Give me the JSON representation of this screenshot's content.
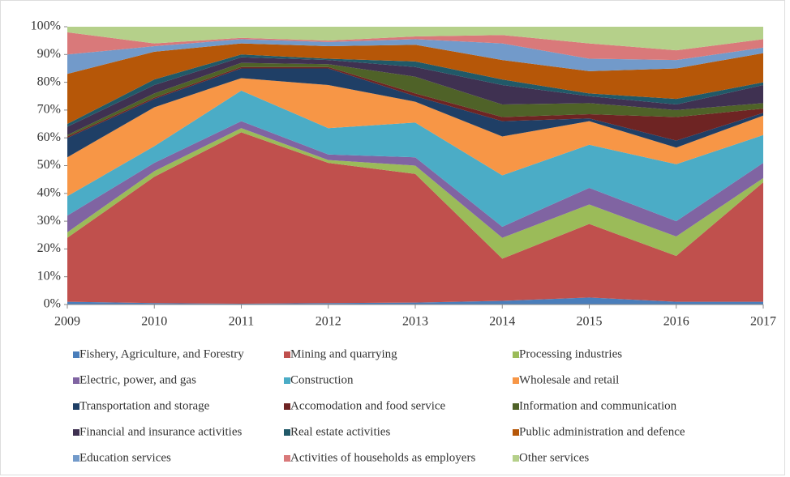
{
  "chart_data": {
    "type": "stacked-area",
    "categories": [
      "2009",
      "2010",
      "2011",
      "2012",
      "2013",
      "2014",
      "2015",
      "2016",
      "2017"
    ],
    "ylim": [
      0,
      100
    ],
    "yticks": [
      {
        "value": 0,
        "label": "0%"
      },
      {
        "value": 10,
        "label": "10%"
      },
      {
        "value": 20,
        "label": "20%"
      },
      {
        "value": 30,
        "label": "30%"
      },
      {
        "value": 40,
        "label": "40%"
      },
      {
        "value": 50,
        "label": "50%"
      },
      {
        "value": 60,
        "label": "60%"
      },
      {
        "value": 70,
        "label": "70%"
      },
      {
        "value": 80,
        "label": "80%"
      },
      {
        "value": 90,
        "label": "90%"
      },
      {
        "value": 100,
        "label": "100%"
      }
    ],
    "legend": "bottom",
    "series": [
      {
        "name": "Fishery, Agriculture, and Forestry",
        "color": "#4a7ebb",
        "values": [
          1,
          0.5,
          0.3,
          0.5,
          0.7,
          1.3,
          2.5,
          1,
          1
        ]
      },
      {
        "name": "Mining and quarrying",
        "color": "#c0504d",
        "values": [
          23,
          45.5,
          61.7,
          50.5,
          46.3,
          15.2,
          26.5,
          16.5,
          43
        ]
      },
      {
        "name": "Processing industries",
        "color": "#9bbb59",
        "values": [
          2,
          2,
          1.5,
          1,
          3,
          7.5,
          7,
          7,
          1.5
        ]
      },
      {
        "name": "Electric, power, and gas",
        "color": "#8064a2",
        "values": [
          6,
          3,
          2.5,
          2,
          3,
          4,
          6,
          5.5,
          5.5
        ]
      },
      {
        "name": "Construction",
        "color": "#4bacc6",
        "values": [
          7,
          6,
          11,
          9.5,
          12.5,
          18.5,
          15.5,
          20.5,
          10
        ]
      },
      {
        "name": "Wholesale and retail",
        "color": "#f79646",
        "values": [
          14,
          14,
          4.5,
          15.5,
          7.5,
          14,
          8.5,
          6,
          7
        ]
      },
      {
        "name": "Transportation and storage",
        "color": "#1f3f66",
        "values": [
          7,
          3,
          3.5,
          6,
          2,
          5.5,
          1,
          2.5,
          1
        ]
      },
      {
        "name": "Accomodation and food service",
        "color": "#6e2423",
        "values": [
          0.5,
          0.5,
          0.5,
          0.5,
          1,
          1.5,
          1.5,
          8.5,
          1.5
        ]
      },
      {
        "name": "Information and communication",
        "color": "#4f6228",
        "values": [
          0.5,
          1.5,
          1.5,
          1,
          6,
          4.5,
          4,
          2.5,
          2
        ]
      },
      {
        "name": "Financial and insurance activities",
        "color": "#3f3151",
        "values": [
          3,
          3,
          2,
          1.5,
          3.5,
          7,
          2.5,
          2,
          6.5
        ]
      },
      {
        "name": "Real estate activities",
        "color": "#215968",
        "values": [
          1,
          2,
          1,
          0.5,
          2,
          2,
          1,
          2,
          1
        ]
      },
      {
        "name": "Public administration and defence",
        "color": "#b65708",
        "values": [
          18,
          10,
          4,
          4.5,
          6,
          7,
          8,
          11,
          10.5
        ]
      },
      {
        "name": "Education services",
        "color": "#729aca",
        "values": [
          7,
          2,
          1.5,
          1.5,
          2,
          6,
          4.5,
          3,
          2
        ]
      },
      {
        "name": "Activities of households as employers",
        "color": "#d9797a",
        "values": [
          8,
          1,
          0.5,
          0.5,
          1,
          3,
          5.5,
          3.5,
          3
        ]
      },
      {
        "name": "Other services",
        "color": "#b5d08a",
        "values": [
          2,
          6,
          4,
          5,
          3.5,
          3,
          6,
          8.5,
          4.5
        ]
      }
    ]
  }
}
